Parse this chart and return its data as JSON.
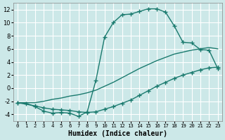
{
  "xlabel": "Humidex (Indice chaleur)",
  "bg_color": "#cce8e8",
  "grid_color": "#ffffff",
  "line_color": "#1a7a6e",
  "x_ticks": [
    0,
    1,
    2,
    3,
    4,
    5,
    6,
    7,
    8,
    9,
    10,
    11,
    12,
    13,
    14,
    15,
    16,
    17,
    18,
    19,
    20,
    21,
    22,
    23
  ],
  "y_ticks": [
    -4,
    -2,
    0,
    2,
    4,
    6,
    8,
    10,
    12
  ],
  "xlim": [
    -0.5,
    23.5
  ],
  "ylim": [
    -5.0,
    13.0
  ],
  "line1_x": [
    0,
    1,
    2,
    3,
    4,
    5,
    6,
    7,
    8,
    9,
    10,
    11,
    12,
    13,
    14,
    15,
    16,
    17,
    18,
    19,
    20,
    21,
    22,
    23
  ],
  "line1_y": [
    -2.2,
    -2.3,
    -2.8,
    -3.5,
    -3.8,
    -3.7,
    -3.8,
    -4.3,
    -3.6,
    1.2,
    7.8,
    10.0,
    11.2,
    11.3,
    11.7,
    12.1,
    12.1,
    11.6,
    9.5,
    7.0,
    6.9,
    5.9,
    5.8,
    3.0
  ],
  "line2_x": [
    0,
    2,
    3,
    4,
    5,
    6,
    7,
    8,
    9,
    10,
    11,
    12,
    13,
    14,
    15,
    16,
    17,
    18,
    19,
    20,
    21,
    22,
    23
  ],
  "line2_y": [
    -2.2,
    -2.7,
    -3.0,
    -3.2,
    -3.3,
    -3.4,
    -3.6,
    -3.7,
    -3.6,
    -3.2,
    -2.8,
    -2.3,
    -1.8,
    -1.1,
    -0.4,
    0.3,
    0.9,
    1.5,
    2.0,
    2.4,
    2.8,
    3.1,
    3.2
  ],
  "line3_x": [
    0,
    2,
    3,
    4,
    5,
    6,
    7,
    8,
    9,
    10,
    11,
    12,
    13,
    14,
    15,
    16,
    17,
    18,
    19,
    20,
    21,
    22,
    23
  ],
  "line3_y": [
    -2.2,
    -2.2,
    -2.0,
    -1.7,
    -1.5,
    -1.2,
    -1.0,
    -0.7,
    -0.3,
    0.3,
    0.9,
    1.6,
    2.3,
    3.0,
    3.6,
    4.2,
    4.7,
    5.2,
    5.5,
    5.8,
    6.0,
    6.2,
    6.0
  ]
}
